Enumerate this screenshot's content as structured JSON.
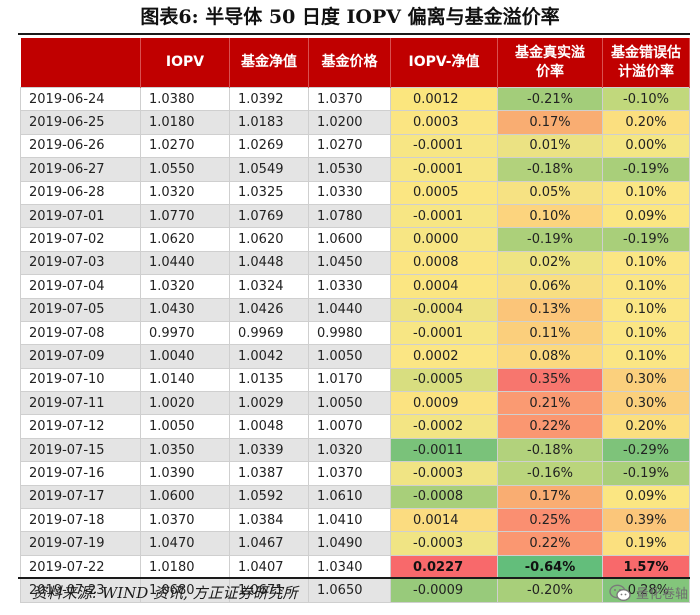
{
  "title": "图表6:   半导体 50 日度 IOPV 偏离与基金溢价率",
  "table": {
    "headers": [
      "",
      "IOPV",
      "基金净值",
      "基金价格",
      "IOPV-净值",
      "基金真实溢价率",
      "基金错误估计溢价率"
    ],
    "header_lines": [
      [
        ""
      ],
      [
        "IOPV"
      ],
      [
        "基金净值"
      ],
      [
        "基金价格"
      ],
      [
        "IOPV-净值"
      ],
      [
        "基金真实溢",
        "价率"
      ],
      [
        "基金错误估",
        "计溢价率"
      ]
    ],
    "rows": [
      {
        "date": "2019-06-24",
        "iopv": "1.0380",
        "nav": "1.0392",
        "price": "1.0370",
        "dev": "0.0012",
        "true_prem": "-0.21%",
        "err_prem": "-0.10%",
        "colors": [
          "#fbe67e",
          "#a3cd7a",
          "#c1d87c"
        ]
      },
      {
        "date": "2019-06-25",
        "iopv": "1.0180",
        "nav": "1.0183",
        "price": "1.0200",
        "dev": "0.0003",
        "true_prem": "0.17%",
        "err_prem": "0.20%",
        "colors": [
          "#fbe582",
          "#f9ad72",
          "#fbdf7f"
        ]
      },
      {
        "date": "2019-06-26",
        "iopv": "1.0270",
        "nav": "1.0269",
        "price": "1.0270",
        "dev": "-0.0001",
        "true_prem": "0.01%",
        "err_prem": "0.00%",
        "colors": [
          "#f7e684",
          "#ebe283",
          "#f4e684"
        ]
      },
      {
        "date": "2019-06-27",
        "iopv": "1.0550",
        "nav": "1.0549",
        "price": "1.0530",
        "dev": "-0.0001",
        "true_prem": "-0.18%",
        "err_prem": "-0.19%",
        "colors": [
          "#f7e684",
          "#b2d27c",
          "#a9cf7a"
        ]
      },
      {
        "date": "2019-06-28",
        "iopv": "1.0320",
        "nav": "1.0325",
        "price": "1.0330",
        "dev": "0.0005",
        "true_prem": "0.05%",
        "err_prem": "0.10%",
        "colors": [
          "#fbe682",
          "#f6e283",
          "#fbe684"
        ]
      },
      {
        "date": "2019-07-01",
        "iopv": "1.0770",
        "nav": "1.0769",
        "price": "1.0780",
        "dev": "-0.0001",
        "true_prem": "0.10%",
        "err_prem": "0.09%",
        "colors": [
          "#f7e684",
          "#fcd47e",
          "#fbe682"
        ]
      },
      {
        "date": "2019-07-02",
        "iopv": "1.0620",
        "nav": "1.0620",
        "price": "1.0600",
        "dev": "0.0000",
        "true_prem": "-0.19%",
        "err_prem": "-0.19%",
        "colors": [
          "#f7e684",
          "#acd07a",
          "#a9cf7a"
        ]
      },
      {
        "date": "2019-07-03",
        "iopv": "1.0440",
        "nav": "1.0448",
        "price": "1.0450",
        "dev": "0.0008",
        "true_prem": "0.02%",
        "err_prem": "0.10%",
        "colors": [
          "#fbe582",
          "#eee483",
          "#fbe684"
        ]
      },
      {
        "date": "2019-07-04",
        "iopv": "1.0320",
        "nav": "1.0324",
        "price": "1.0330",
        "dev": "0.0004",
        "true_prem": "0.06%",
        "err_prem": "0.10%",
        "colors": [
          "#fbe682",
          "#f8df82",
          "#fbe684"
        ]
      },
      {
        "date": "2019-07-05",
        "iopv": "1.0430",
        "nav": "1.0426",
        "price": "1.0440",
        "dev": "-0.0004",
        "true_prem": "0.13%",
        "err_prem": "0.10%",
        "colors": [
          "#eee383",
          "#fbc579",
          "#fbe684"
        ]
      },
      {
        "date": "2019-07-08",
        "iopv": "0.9970",
        "nav": "0.9969",
        "price": "0.9980",
        "dev": "-0.0001",
        "true_prem": "0.11%",
        "err_prem": "0.10%",
        "colors": [
          "#f7e684",
          "#fbcf7c",
          "#fbe684"
        ]
      },
      {
        "date": "2019-07-09",
        "iopv": "1.0040",
        "nav": "1.0042",
        "price": "1.0050",
        "dev": "0.0002",
        "true_prem": "0.08%",
        "err_prem": "0.10%",
        "colors": [
          "#fbe684",
          "#fbd97f",
          "#fbe684"
        ]
      },
      {
        "date": "2019-07-10",
        "iopv": "1.0140",
        "nav": "1.0135",
        "price": "1.0170",
        "dev": "-0.0005",
        "true_prem": "0.35%",
        "err_prem": "0.30%",
        "colors": [
          "#d8de80",
          "#f7766e",
          "#fbd07d"
        ]
      },
      {
        "date": "2019-07-11",
        "iopv": "1.0020",
        "nav": "1.0029",
        "price": "1.0050",
        "dev": "0.0009",
        "true_prem": "0.21%",
        "err_prem": "0.30%",
        "colors": [
          "#fbe381",
          "#fa9a72",
          "#fbd07d"
        ]
      },
      {
        "date": "2019-07-12",
        "iopv": "1.0050",
        "nav": "1.0048",
        "price": "1.0070",
        "dev": "-0.0002",
        "true_prem": "0.22%",
        "err_prem": "0.20%",
        "colors": [
          "#f3e584",
          "#fa9771",
          "#fbdf7f"
        ]
      },
      {
        "date": "2019-07-15",
        "iopv": "1.0350",
        "nav": "1.0339",
        "price": "1.0320",
        "dev": "-0.0011",
        "true_prem": "-0.18%",
        "err_prem": "-0.29%",
        "colors": [
          "#7ac27a",
          "#b2d27c",
          "#7ec37a"
        ]
      },
      {
        "date": "2019-07-16",
        "iopv": "1.0390",
        "nav": "1.0387",
        "price": "1.0370",
        "dev": "-0.0003",
        "true_prem": "-0.16%",
        "err_prem": "-0.19%",
        "colors": [
          "#f0e484",
          "#bad57c",
          "#a9cf7a"
        ]
      },
      {
        "date": "2019-07-17",
        "iopv": "1.0600",
        "nav": "1.0592",
        "price": "1.0610",
        "dev": "-0.0008",
        "true_prem": "0.17%",
        "err_prem": "0.09%",
        "colors": [
          "#a8cf7a",
          "#f9ad72",
          "#fbe682"
        ]
      },
      {
        "date": "2019-07-18",
        "iopv": "1.0370",
        "nav": "1.0384",
        "price": "1.0410",
        "dev": "0.0014",
        "true_prem": "0.25%",
        "err_prem": "0.39%",
        "colors": [
          "#fbdc80",
          "#fa8f71",
          "#fbc67a"
        ]
      },
      {
        "date": "2019-07-19",
        "iopv": "1.0470",
        "nav": "1.0467",
        "price": "1.0490",
        "dev": "-0.0003",
        "true_prem": "0.22%",
        "err_prem": "0.19%",
        "colors": [
          "#f0e484",
          "#fa9771",
          "#fbe07f"
        ]
      },
      {
        "date": "2019-07-22",
        "iopv": "1.0180",
        "nav": "1.0407",
        "price": "1.0340",
        "dev": "0.0227",
        "true_prem": "-0.64%",
        "err_prem": "1.57%",
        "colors": [
          "#f8696b",
          "#63be7b",
          "#f8696b"
        ],
        "bold": true
      },
      {
        "date": "2019-07-23",
        "iopv": "1.0680",
        "nav": "1.0671",
        "price": "1.0650",
        "dev": "-0.0009",
        "true_prem": "-0.20%",
        "err_prem": "-0.28%",
        "colors": [
          "#98ca7b",
          "#a8cf7a",
          "#83c57b"
        ]
      }
    ]
  },
  "source": "资料来源: WIND 资讯, 方正证券研究所",
  "watermark": {
    "icon": "wechat-icon",
    "text": "量化卷轴"
  }
}
